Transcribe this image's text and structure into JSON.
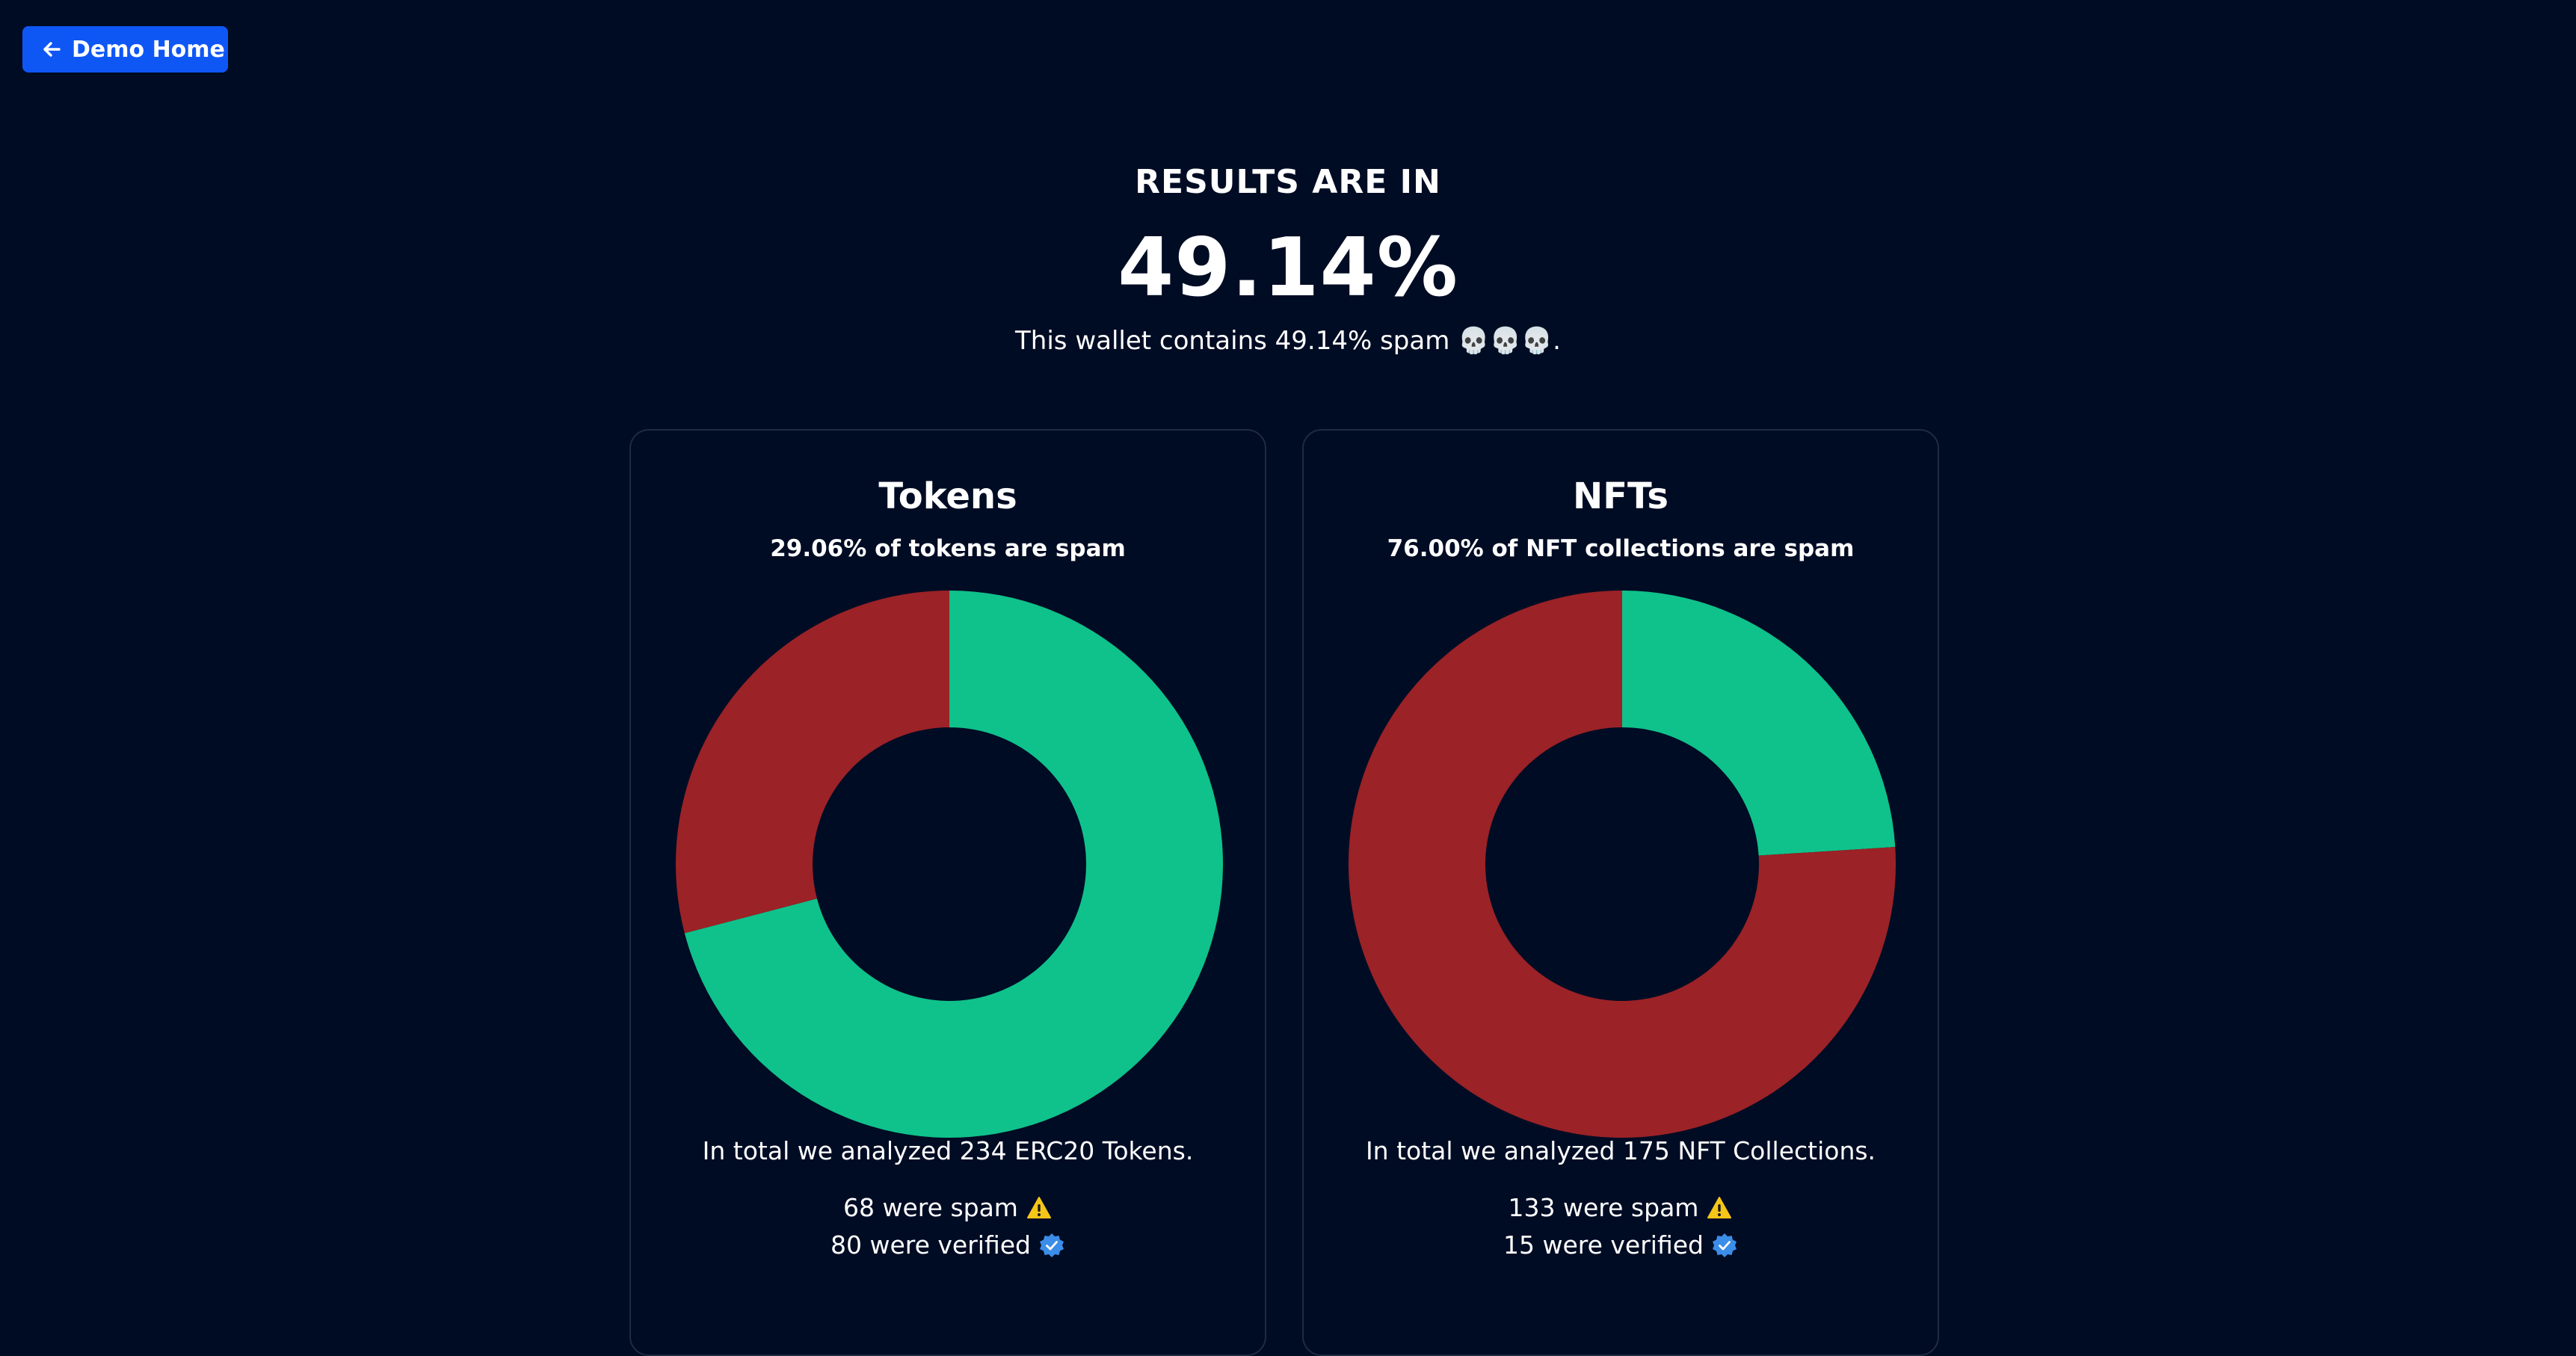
{
  "nav": {
    "back_label": "Demo Home"
  },
  "hero": {
    "eyebrow": "RESULTS ARE IN",
    "percent": "49.14%",
    "summary": "This wallet contains 49.14% spam 💀💀💀."
  },
  "colors": {
    "background": "#000c24",
    "accent_button": "#0f57f5",
    "verified_color": "#0fc28b",
    "spam_color": "#9b2226",
    "card_border": "#1f2a44"
  },
  "cards": {
    "tokens": {
      "title": "Tokens",
      "subtitle": "29.06% of tokens are spam",
      "total": "In total we analyzed 234 ERC20 Tokens.",
      "spam": "68 were spam",
      "verified": "80 were verified"
    },
    "nfts": {
      "title": "NFTs",
      "subtitle": "76.00% of NFT collections are spam",
      "total": "In total we analyzed 175 NFT Collections.",
      "spam": "133 were spam",
      "verified": "15 were verified"
    }
  },
  "icons": {
    "back": "arrow-left-icon",
    "spam": "warning-icon",
    "verified": "verified-badge-icon"
  },
  "chart_data": [
    {
      "type": "pie",
      "donut": true,
      "categories": [
        "verified",
        "spam"
      ],
      "values": [
        70.94,
        29.06
      ],
      "colors": [
        "#0fc28b",
        "#9b2226"
      ],
      "title": "Tokens"
    },
    {
      "type": "pie",
      "donut": true,
      "categories": [
        "verified",
        "spam"
      ],
      "values": [
        24.0,
        76.0
      ],
      "colors": [
        "#0fc28b",
        "#9b2226"
      ],
      "title": "NFTs"
    }
  ]
}
